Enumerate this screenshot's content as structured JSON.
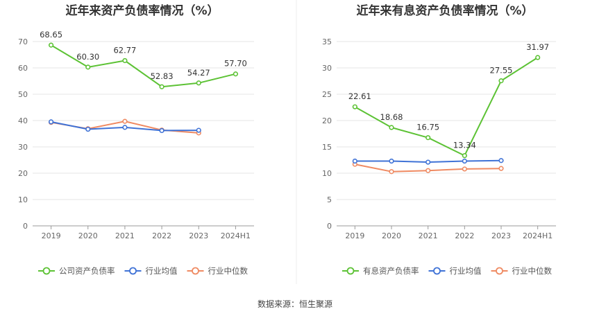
{
  "source": "数据来源：恒生聚源",
  "chart_data": [
    {
      "type": "line",
      "title": "近年来资产负债率情况（%）",
      "categories": [
        "2019",
        "2020",
        "2021",
        "2022",
        "2023",
        "2024H1"
      ],
      "ylim": [
        0,
        70
      ],
      "yticks": [
        0,
        10,
        20,
        30,
        40,
        50,
        60,
        70
      ],
      "grid": true,
      "legend_position": "bottom",
      "series": [
        {
          "name": "公司资产负债率",
          "color": "#5cc234",
          "labels": true,
          "values": [
            68.65,
            60.3,
            62.77,
            52.83,
            54.27,
            57.7
          ]
        },
        {
          "name": "行业均值",
          "color": "#3f72d6",
          "labels": false,
          "values": [
            39.5,
            36.7,
            37.4,
            36.2,
            36.3,
            null
          ]
        },
        {
          "name": "行业中位数",
          "color": "#ef8a62",
          "labels": false,
          "values": [
            39.3,
            36.9,
            39.7,
            36.4,
            35.3,
            null
          ]
        }
      ]
    },
    {
      "type": "line",
      "title": "近年来有息资产负债率情况（%）",
      "categories": [
        "2019",
        "2020",
        "2021",
        "2022",
        "2023",
        "2024H1"
      ],
      "ylim": [
        0,
        35
      ],
      "yticks": [
        0,
        5,
        10,
        15,
        20,
        25,
        30,
        35
      ],
      "grid": true,
      "legend_position": "bottom",
      "series": [
        {
          "name": "有息资产负债率",
          "color": "#5cc234",
          "labels": true,
          "values": [
            22.61,
            18.68,
            16.75,
            13.34,
            27.55,
            31.97
          ]
        },
        {
          "name": "行业均值",
          "color": "#3f72d6",
          "labels": false,
          "values": [
            12.3,
            12.3,
            12.1,
            12.3,
            12.4,
            null
          ]
        },
        {
          "name": "行业中位数",
          "color": "#ef8a62",
          "labels": false,
          "values": [
            11.7,
            10.3,
            10.5,
            10.8,
            10.9,
            null
          ]
        }
      ]
    }
  ]
}
